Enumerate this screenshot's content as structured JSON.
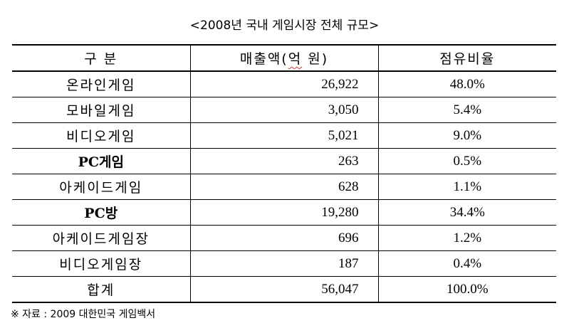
{
  "title": "<2008년 국내 게임시장 전체 규모>",
  "headers": {
    "category": "구 분",
    "sales_prefix": "매출액(",
    "sales_unit": "억",
    "sales_suffix": " 원)",
    "share": "점유비율"
  },
  "rows": [
    {
      "category": "온라인게임",
      "sales": "26,922",
      "share": "48.0%"
    },
    {
      "category": "모바일게임",
      "sales": "3,050",
      "share": "5.4%"
    },
    {
      "category": "비디오게임",
      "sales": "5,021",
      "share": "9.0%"
    },
    {
      "category": "PC게임",
      "sales": "263",
      "share": "0.5%"
    },
    {
      "category": "아케이드게임",
      "sales": "628",
      "share": "1.1%"
    },
    {
      "category": "PC방",
      "sales": "19,280",
      "share": "34.4%"
    },
    {
      "category": "아케이드게임장",
      "sales": "696",
      "share": "1.2%"
    },
    {
      "category": "비디오게임장",
      "sales": "187",
      "share": "0.4%"
    }
  ],
  "total": {
    "category": "합계",
    "sales": "56,047",
    "share": "100.0%"
  },
  "source": "※ 자료 : 2009 대한민국 게임백서"
}
